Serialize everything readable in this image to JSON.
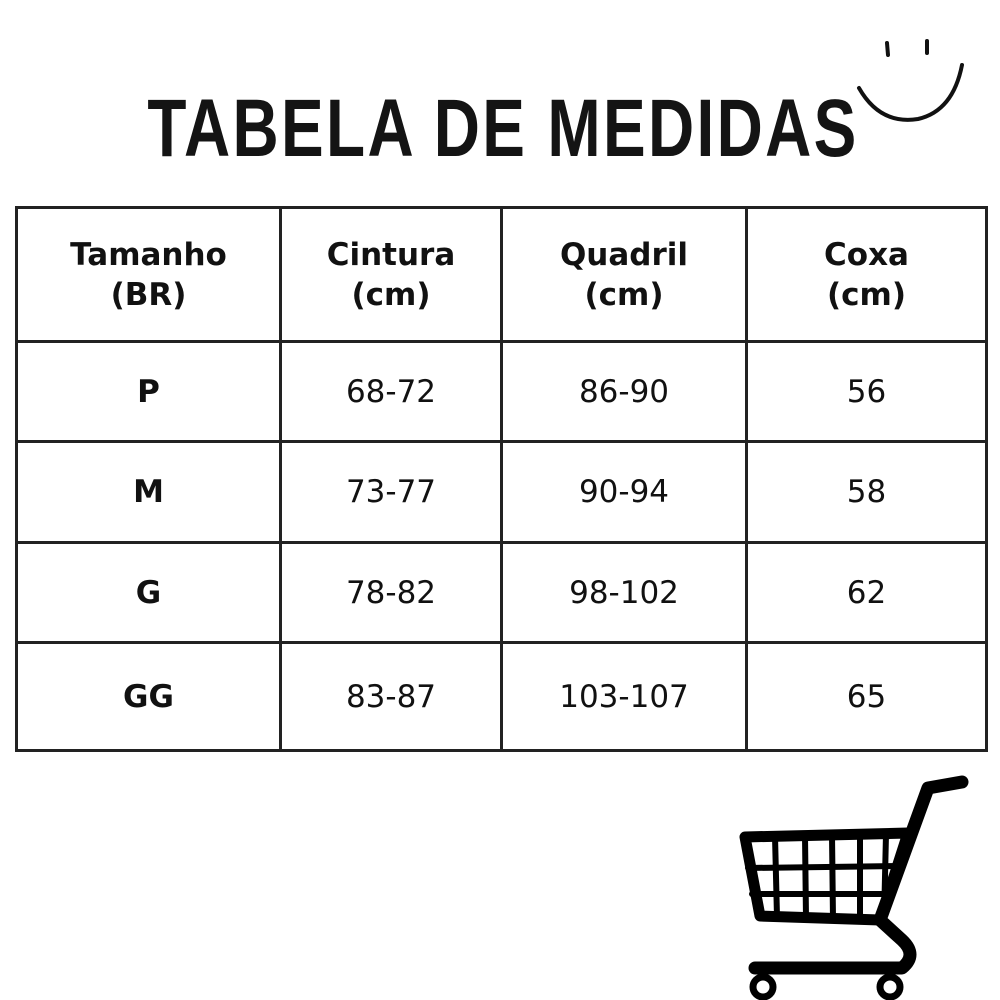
{
  "title": "TABELA DE MEDIDAS",
  "table": {
    "headers": [
      {
        "line1": "Tamanho",
        "line2": "(BR)"
      },
      {
        "line1": "Cintura",
        "line2": "(cm)"
      },
      {
        "line1": "Quadril",
        "line2": "(cm)"
      },
      {
        "line1": "Coxa",
        "line2": "(cm)"
      }
    ],
    "rows": [
      [
        "P",
        "68-72",
        "86-90",
        "56"
      ],
      [
        "M",
        "73-77",
        "90-94",
        "58"
      ],
      [
        "G",
        "78-82",
        "98-102",
        "62"
      ],
      [
        "GG",
        "83-87",
        "103-107",
        "65"
      ]
    ]
  },
  "icons": [
    "smiley-face-icon",
    "shopping-cart-icon"
  ]
}
